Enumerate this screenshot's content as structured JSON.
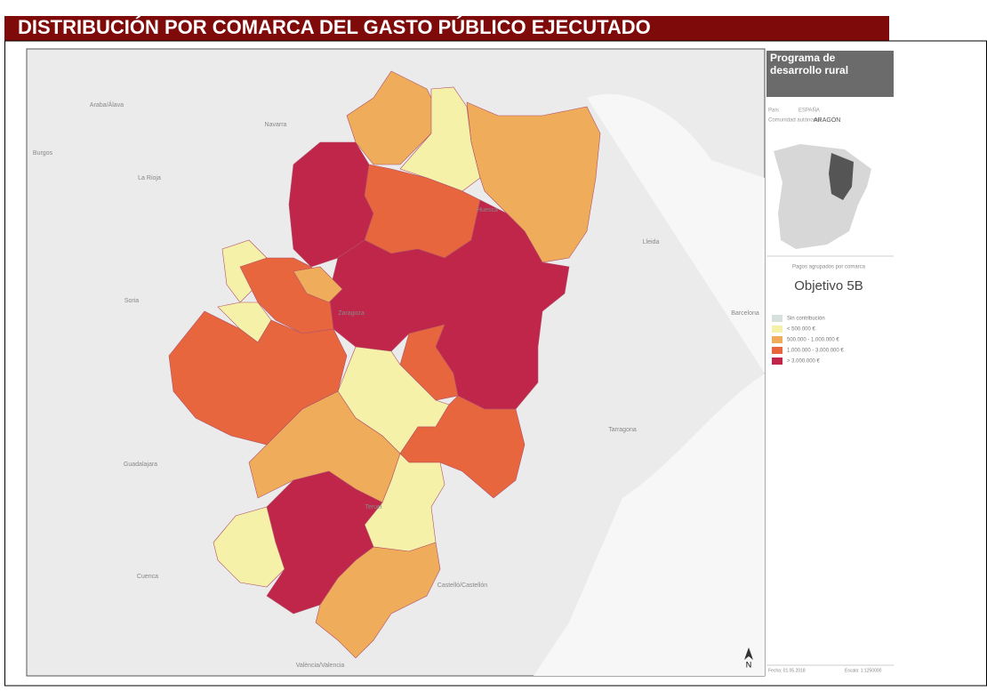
{
  "header": {
    "title": "DISTRIBUCIÓN POR COMARCA DEL GASTO PÚBLICO EJECUTADO"
  },
  "panel": {
    "title": "Programa de desarrollo rural",
    "country_label": "País",
    "country": "ESPAÑA",
    "region_label": "Comunidad autónoma",
    "region": "ARAGÓN",
    "legend_caption": "Pagos agrupados por comarca",
    "legend_title": "Objetivo 5B",
    "legend": [
      {
        "label": "Sin contribución",
        "color": "#d6e0dc"
      },
      {
        "label": "< 500.000 €",
        "color": "#f6f1a8"
      },
      {
        "label": "500.000 - 1.000.000 €",
        "color": "#efad5c"
      },
      {
        "label": "1.000.000 - 3.000.000 €",
        "color": "#e8663e"
      },
      {
        "label": "> 3.000.000 €",
        "color": "#c0264a"
      }
    ],
    "date": "Fecha: 01.05.2018",
    "scale": "Escala: 1:1250000"
  },
  "map": {
    "places": [
      "Araba/Álava",
      "Navarra",
      "Burgos",
      "La Rioja",
      "Soria",
      "Zaragoza",
      "Huesca",
      "Lleida",
      "Barcelona",
      "Tarragona",
      "Guadalajara",
      "Teruel",
      "Cuenca",
      "Castelló/Castellón",
      "València/Valencia"
    ],
    "north": "N"
  }
}
